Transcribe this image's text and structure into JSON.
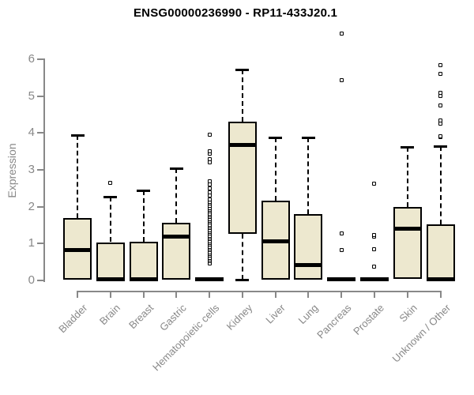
{
  "chart_data": {
    "type": "boxplot",
    "title": "ENSG00000236990 - RP11-433J20.1",
    "ylabel": "Expression",
    "xlabel": "",
    "yticks": [
      0,
      1,
      2,
      3,
      4,
      5,
      6
    ],
    "ylim": [
      0,
      6.9
    ],
    "grid": false,
    "legend": "none",
    "box_fill_color": "#EDE8CF",
    "box_border_color": "#000000",
    "axis_color": "#888888",
    "title_color": "#000000",
    "categories": [
      "Bladder",
      "Brain",
      "Breast",
      "Gastric",
      "Hematopoietic cells",
      "Kidney",
      "Liver",
      "Lung",
      "Pancreas",
      "Prostate",
      "Skin",
      "Unknown / Other"
    ],
    "series": [
      {
        "label": "Bladder",
        "low": 0.02,
        "q1": 0.02,
        "median": 0.82,
        "q3": 1.7,
        "high": 3.95,
        "outliers": []
      },
      {
        "label": "Brain",
        "low": 0.02,
        "q1": 0.02,
        "median": 0.04,
        "q3": 1.04,
        "high": 2.27,
        "outliers": [
          2.65
        ]
      },
      {
        "label": "Breast",
        "low": 0.02,
        "q1": 0.02,
        "median": 0.04,
        "q3": 1.05,
        "high": 2.44,
        "outliers": []
      },
      {
        "label": "Gastric",
        "low": 0.02,
        "q1": 0.02,
        "median": 1.2,
        "q3": 1.57,
        "high": 3.05,
        "outliers": []
      },
      {
        "label": "Hematopoietic cells",
        "low": 0.0,
        "q1": 0.0,
        "median": 0.03,
        "q3": 0.06,
        "high": 0.06,
        "outliers": [
          0.47,
          0.52,
          0.57,
          0.62,
          0.67,
          0.72,
          0.77,
          0.82,
          0.87,
          0.92,
          0.97,
          1.02,
          1.07,
          1.12,
          1.17,
          1.22,
          1.27,
          1.32,
          1.37,
          1.42,
          1.47,
          1.52,
          1.57,
          1.62,
          1.67,
          1.72,
          1.77,
          1.82,
          1.87,
          1.92,
          1.97,
          2.02,
          2.08,
          2.14,
          2.2,
          2.3,
          2.4,
          2.5,
          2.6,
          2.7,
          3.2,
          3.28,
          3.45,
          3.5,
          3.95
        ]
      },
      {
        "label": "Kidney",
        "low": 0.02,
        "q1": 1.27,
        "median": 3.68,
        "q3": 4.3,
        "high": 5.72,
        "outliers": []
      },
      {
        "label": "Liver",
        "low": 0.02,
        "q1": 0.02,
        "median": 1.07,
        "q3": 2.16,
        "high": 3.88,
        "outliers": []
      },
      {
        "label": "Lung",
        "low": 0.02,
        "q1": 0.02,
        "median": 0.42,
        "q3": 1.8,
        "high": 3.88,
        "outliers": []
      },
      {
        "label": "Pancreas",
        "low": 0.0,
        "q1": 0.0,
        "median": 0.03,
        "q3": 0.06,
        "high": 0.06,
        "outliers": [
          0.82,
          1.27,
          5.43,
          6.7
        ]
      },
      {
        "label": "Prostate",
        "low": 0.0,
        "q1": 0.0,
        "median": 0.03,
        "q3": 0.06,
        "high": 0.06,
        "outliers": [
          0.38,
          0.85,
          1.18,
          1.24,
          2.62
        ]
      },
      {
        "label": "Skin",
        "low": 0.04,
        "q1": 0.04,
        "median": 1.41,
        "q3": 1.99,
        "high": 3.62,
        "outliers": []
      },
      {
        "label": "Unknown / Other",
        "low": 0.02,
        "q1": 0.02,
        "median": 0.04,
        "q3": 1.53,
        "high": 3.64,
        "outliers": [
          3.88,
          3.92,
          4.25,
          4.35,
          4.75,
          5.0,
          5.08,
          5.6,
          5.85
        ]
      }
    ]
  }
}
